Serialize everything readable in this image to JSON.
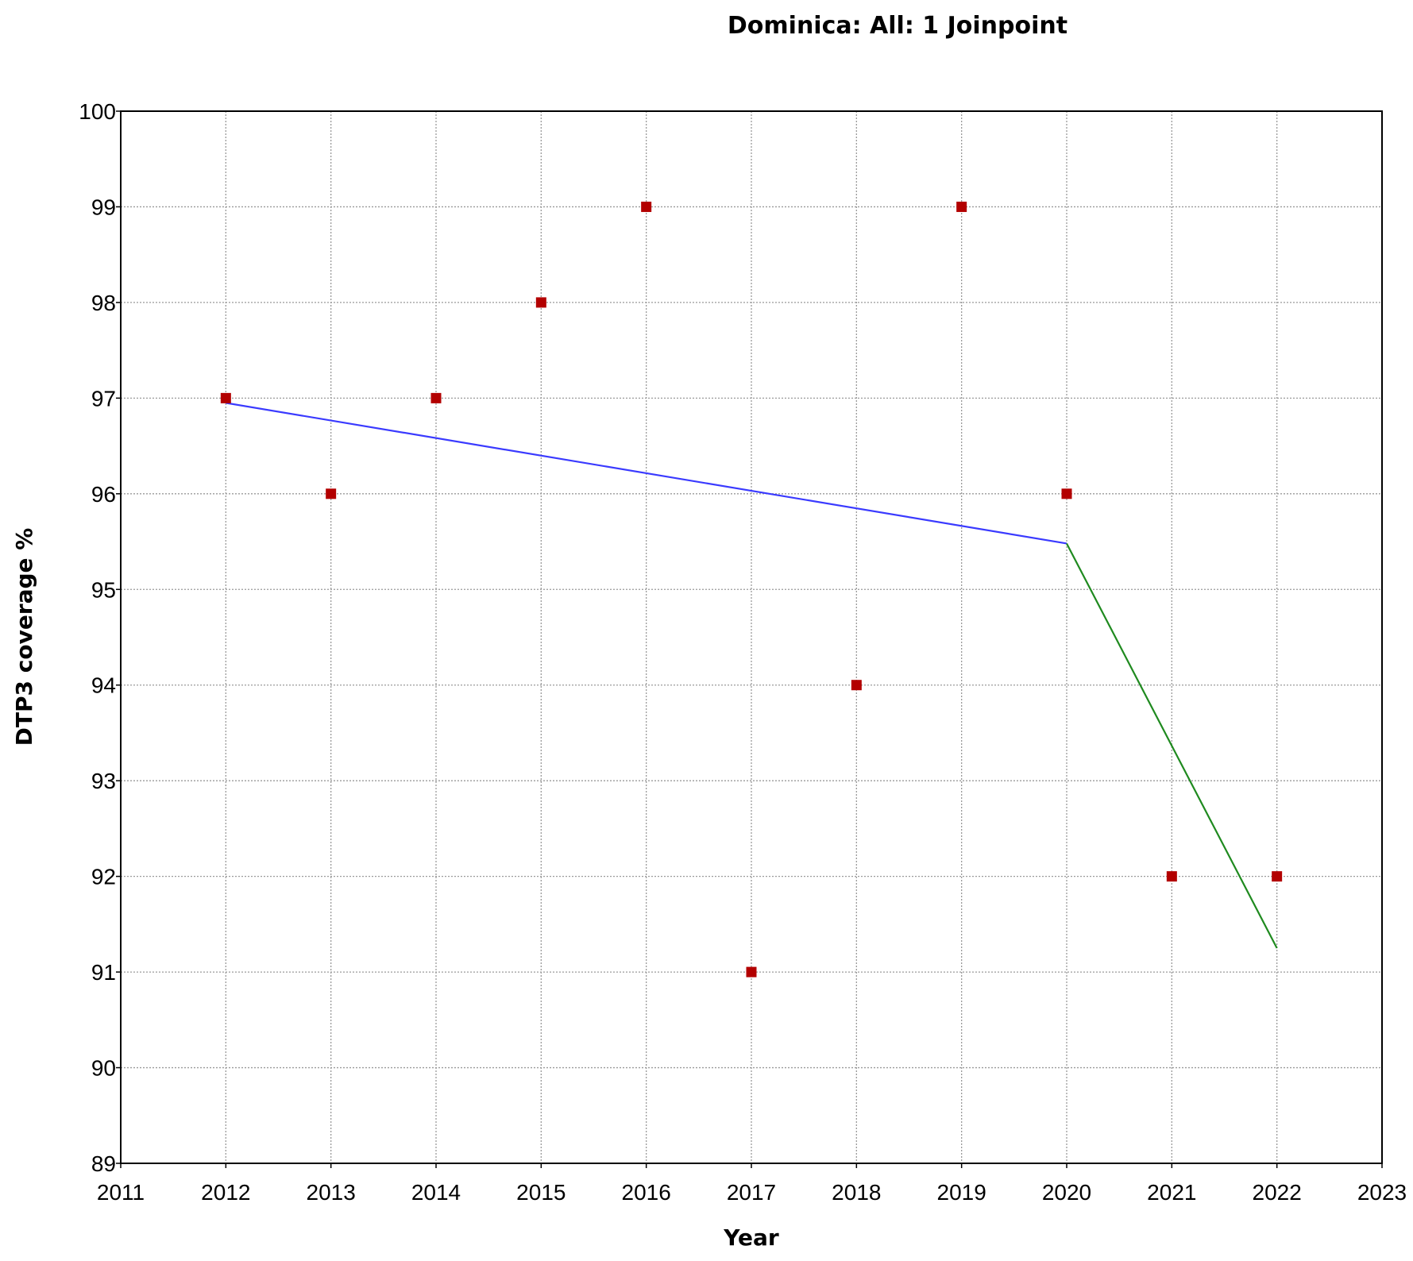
{
  "chart_data": {
    "type": "scatter",
    "title": "Dominica: All: 1 Joinpoint",
    "xlabel": "Year",
    "ylabel": "DTP3 coverage %",
    "xlim": [
      2011,
      2023
    ],
    "ylim": [
      89,
      100
    ],
    "x_ticks": [
      "2011",
      "2012",
      "2013",
      "2014",
      "2015",
      "2016",
      "2017",
      "2018",
      "2019",
      "2020",
      "2021",
      "2022",
      "2023"
    ],
    "y_ticks": [
      "89",
      "90",
      "91",
      "92",
      "93",
      "94",
      "95",
      "96",
      "97",
      "98",
      "99",
      "100"
    ],
    "grid": true,
    "legend": "none",
    "series": [
      {
        "kind": "points",
        "color": "#b30000",
        "marker": "square",
        "points": [
          {
            "x": 2012,
            "y": 97
          },
          {
            "x": 2013,
            "y": 96
          },
          {
            "x": 2014,
            "y": 97
          },
          {
            "x": 2015,
            "y": 98
          },
          {
            "x": 2016,
            "y": 99
          },
          {
            "x": 2017,
            "y": 91
          },
          {
            "x": 2018,
            "y": 94
          },
          {
            "x": 2019,
            "y": 99
          },
          {
            "x": 2020,
            "y": 96
          },
          {
            "x": 2021,
            "y": 92
          },
          {
            "x": 2022,
            "y": 92
          }
        ]
      },
      {
        "kind": "line",
        "color": "#3a3aff",
        "points": [
          {
            "x": 2012,
            "y": 96.95
          },
          {
            "x": 2020,
            "y": 95.48
          }
        ]
      },
      {
        "kind": "line",
        "color": "#1f8a1f",
        "points": [
          {
            "x": 2020,
            "y": 95.48
          },
          {
            "x": 2022,
            "y": 91.25
          }
        ]
      }
    ]
  }
}
